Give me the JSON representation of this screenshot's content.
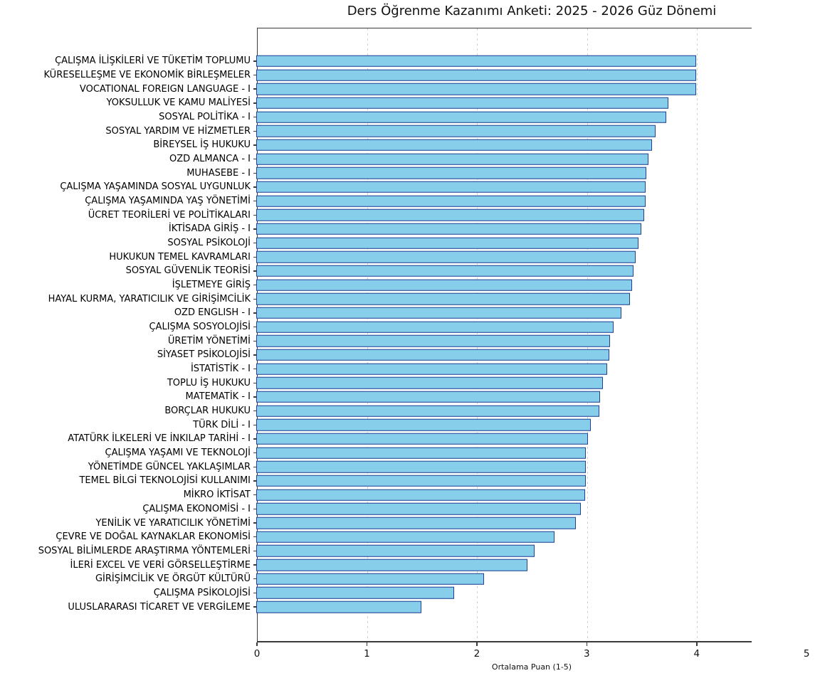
{
  "chart_data": {
    "type": "bar",
    "orientation": "horizontal",
    "title": "Ders Öğrenme Kazanımı Anketi: 2025 - 2026 Güz Dönemi",
    "xlabel": "Ortalama Puan (1-5)",
    "xlim": [
      0,
      4.5
    ],
    "xticks": [
      0,
      1,
      2,
      3,
      4,
      5
    ],
    "grid": "vertical dashed gridlines at ticks, light gray",
    "legend": "none",
    "colors": {
      "bar_fill": "#87CEEB",
      "bar_edge": "#224193",
      "spine": "#3a3a3a",
      "gridline": "#cfcfcf"
    },
    "categories": [
      "ÇALIŞMA İLİŞKİLERİ VE TÜKETİM TOPLUMU",
      "KÜRESELLEŞME VE EKONOMİK BİRLEŞMELER",
      "VOCATIONAL FOREIGN LANGUAGE - I",
      "YOKSULLUK VE KAMU MALİYESİ",
      "SOSYAL POLİTİKA - I",
      "SOSYAL YARDIM VE HİZMETLER",
      "BİREYSEL İŞ HUKUKU",
      "OZD ALMANCA - I",
      "MUHASEBE - I",
      "ÇALIŞMA YAŞAMINDA SOSYAL UYGUNLUK",
      "ÇALIŞMA YAŞAMINDA YAŞ YÖNETİMİ",
      "ÜCRET TEORİLERİ VE POLİTİKALARI",
      "İKTİSADA GİRİŞ - I",
      "SOSYAL PSİKOLOJİ",
      "HUKUKUN TEMEL KAVRAMLARI",
      "SOSYAL GÜVENLİK TEORİSİ",
      "İŞLETMEYE GİRİŞ",
      "HAYAL KURMA, YARATICILIK VE GİRİŞİMCİLİK",
      "OZD ENGLISH - I",
      "ÇALIŞMA SOSYOLOJİSİ",
      "ÜRETİM YÖNETİMİ",
      "SİYASET PSİKOLOJİSİ",
      "İSTATİSTİK - I",
      "TOPLU İŞ HUKUKU",
      "MATEMATİK - I",
      "BORÇLAR HUKUKU",
      "TÜRK DİLİ - I",
      "ATATÜRK İLKELERİ VE İNKILAP TARİHİ - I",
      "ÇALIŞMA YAŞAMI VE TEKNOLOJİ",
      "YÖNETİMDE GÜNCEL YAKLAŞIMLAR",
      "TEMEL BİLGİ TEKNOLOJİSİ KULLANIMI",
      "MİKRO İKTİSAT",
      "ÇALIŞMA EKONOMİSİ - I",
      "YENİLİK VE YARATICILIK YÖNETİMİ",
      "ÇEVRE VE DOĞAL KAYNAKLAR EKONOMİSİ",
      "SOSYAL BİLİMLERDE ARAŞTIRMA YÖNTEMLERİ",
      "İLERİ EXCEL VE VERİ GÖRSELLEŞTİRME",
      "GİRİŞİMCİLİK VE ÖRGÜT KÜLTÜRÜ",
      "ÇALIŞMA PSİKOLOJİSİ",
      "ULUSLARARASI TİCARET VE VERGİLEME"
    ],
    "values": [
      4.0,
      4.0,
      4.0,
      3.75,
      3.73,
      3.63,
      3.6,
      3.57,
      3.55,
      3.54,
      3.54,
      3.53,
      3.5,
      3.48,
      3.45,
      3.43,
      3.42,
      3.4,
      3.32,
      3.25,
      3.22,
      3.21,
      3.19,
      3.15,
      3.13,
      3.12,
      3.04,
      3.02,
      3.0,
      3.0,
      3.0,
      2.99,
      2.95,
      2.91,
      2.71,
      2.53,
      2.47,
      2.07,
      1.8,
      1.5
    ]
  }
}
